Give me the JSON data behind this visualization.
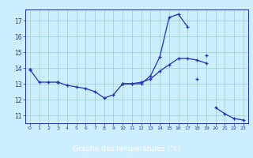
{
  "hours": [
    0,
    1,
    2,
    3,
    4,
    5,
    6,
    7,
    8,
    9,
    10,
    11,
    12,
    13,
    14,
    15,
    16,
    17,
    18,
    19,
    20,
    21,
    22,
    23
  ],
  "y1": [
    13.9,
    13.1,
    13.1,
    13.1,
    12.9,
    12.8,
    12.7,
    12.5,
    12.1,
    12.3,
    13.0,
    13.0,
    13.0,
    13.5,
    14.7,
    17.2,
    17.4,
    16.6,
    null,
    14.8,
    null,
    null,
    null,
    null
  ],
  "y2": [
    13.9,
    null,
    null,
    13.1,
    null,
    null,
    null,
    null,
    null,
    null,
    13.0,
    13.0,
    13.1,
    13.3,
    13.8,
    14.2,
    14.6,
    14.6,
    14.5,
    14.3,
    null,
    null,
    null,
    null
  ],
  "y3": [
    13.9,
    null,
    null,
    13.1,
    null,
    null,
    null,
    null,
    null,
    null,
    13.0,
    null,
    null,
    null,
    null,
    null,
    null,
    null,
    13.3,
    null,
    11.5,
    11.1,
    10.8,
    10.7
  ],
  "xlabel": "Graphe des températures (°c)",
  "ylim": [
    10.5,
    17.7
  ],
  "xlim": [
    -0.5,
    23.5
  ],
  "yticks": [
    11,
    12,
    13,
    14,
    15,
    16,
    17
  ],
  "xticks": [
    0,
    1,
    2,
    3,
    4,
    5,
    6,
    7,
    8,
    9,
    10,
    11,
    12,
    13,
    14,
    15,
    16,
    17,
    18,
    19,
    20,
    21,
    22,
    23
  ],
  "line_color": "#2030bb",
  "bg_color": "#cceeff",
  "grid_color": "#99cccc",
  "label_bg": "#2244bb",
  "label_fg": "#ffffff"
}
